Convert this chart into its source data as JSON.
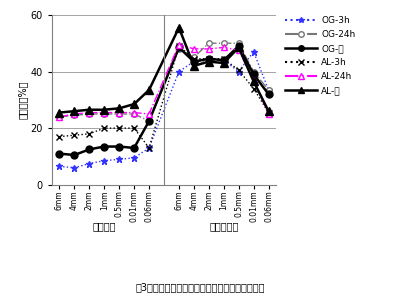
{
  "title": "図3．内容物および糞の粒子サイズ別成分の変化",
  "ylabel": "含有率（%）",
  "ylim": [
    0,
    60
  ],
  "yticks": [
    0,
    20,
    40,
    60
  ],
  "x_labels_lignin": [
    "6mm",
    "4mm",
    "2mm",
    "1mm",
    "0.5mm",
    "0.01mm",
    "0.06mm"
  ],
  "x_labels_cellulose": [
    "6mm",
    "4mm",
    "2mm",
    "1mm",
    "0.5mm",
    "0.01mm",
    "0.06mm"
  ],
  "group_labels": [
    "リグニン",
    "セルロース"
  ],
  "OG_3h_lignin": [
    6.5,
    6.0,
    7.5,
    8.5,
    9.0,
    9.5,
    13.0
  ],
  "OG_24h_lignin": [
    24.0,
    24.5,
    25.0,
    25.0,
    25.0,
    25.0,
    22.5
  ],
  "OG_feces_lignin": [
    11.0,
    10.5,
    12.5,
    13.5,
    13.5,
    13.0,
    22.5
  ],
  "AL_3h_lignin": [
    17.0,
    17.5,
    18.0,
    20.0,
    20.0,
    20.0,
    13.0
  ],
  "AL_24h_lignin": [
    24.0,
    25.0,
    25.5,
    25.5,
    25.5,
    25.5,
    25.0
  ],
  "AL_feces_lignin": [
    25.5,
    26.0,
    26.5,
    26.5,
    27.0,
    28.5,
    33.5
  ],
  "OG_3h_cellulose": [
    40.0,
    43.5,
    44.0,
    44.0,
    40.0,
    47.0,
    33.5
  ],
  "OG_24h_cellulose": [
    48.0,
    45.0,
    50.0,
    50.0,
    50.0,
    40.0,
    33.5
  ],
  "OG_feces_cellulose": [
    48.5,
    43.5,
    44.5,
    44.0,
    49.0,
    39.0,
    32.0
  ],
  "AL_3h_cellulose": [
    49.0,
    44.5,
    44.5,
    44.5,
    40.5,
    34.0,
    25.5
  ],
  "AL_24h_cellulose": [
    49.5,
    48.0,
    48.0,
    48.5,
    47.5,
    37.0,
    25.0
  ],
  "AL_feces_cellulose": [
    55.5,
    42.0,
    43.5,
    43.0,
    48.5,
    36.5,
    26.0
  ],
  "color_OG3h": "#3333ff",
  "color_OG24h": "#777777",
  "color_OGfeces": "#000000",
  "color_AL3h": "#000000",
  "color_AL24h": "#ff00ff",
  "color_ALfeces": "#000000",
  "background_color": "#ffffff",
  "legend_labels": [
    "OG-3h",
    "OG-24h",
    "OG-糞",
    "AL-3h",
    "AL-24h",
    "AL-糞"
  ]
}
